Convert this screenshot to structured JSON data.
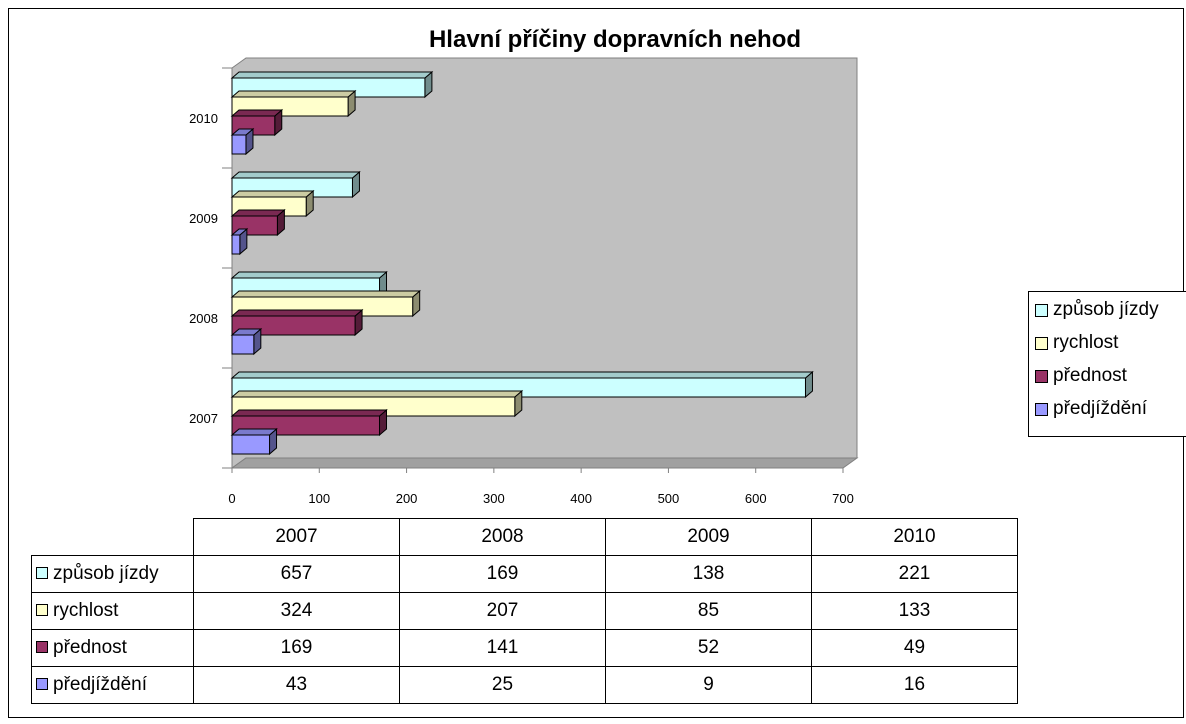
{
  "chart_data": {
    "type": "bar",
    "orientation": "horizontal",
    "style": "3d",
    "title": "Hlavní příčiny dopravních nehod",
    "categories": [
      "2007",
      "2008",
      "2009",
      "2010"
    ],
    "series": [
      {
        "name": "způsob jízdy",
        "values": [
          657,
          169,
          138,
          221
        ],
        "color": "#ccffff"
      },
      {
        "name": "rychlost",
        "values": [
          324,
          207,
          85,
          133
        ],
        "color": "#ffffcc"
      },
      {
        "name": "přednost",
        "values": [
          169,
          141,
          52,
          49
        ],
        "color": "#993366"
      },
      {
        "name": "předjíždění",
        "values": [
          43,
          25,
          9,
          16
        ],
        "color": "#9999ff"
      }
    ],
    "xlim": [
      0,
      700
    ],
    "x_ticks": [
      0,
      100,
      200,
      300,
      400,
      500,
      600,
      700
    ],
    "plot_background": "#c0c0c0",
    "legend_position": "right",
    "data_table": true
  }
}
